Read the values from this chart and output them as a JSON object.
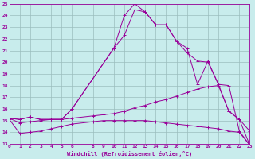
{
  "xlabel": "Windchill (Refroidissement éolien,°C)",
  "background_color": "#c8ecec",
  "grid_color": "#9bbebe",
  "line_color": "#990099",
  "xlim": [
    0,
    23
  ],
  "ylim": [
    13,
    25
  ],
  "xticks": [
    0,
    1,
    2,
    3,
    4,
    5,
    6,
    8,
    9,
    10,
    11,
    12,
    13,
    14,
    15,
    16,
    17,
    18,
    19,
    20,
    21,
    22,
    23
  ],
  "yticks": [
    13,
    14,
    15,
    16,
    17,
    18,
    19,
    20,
    21,
    22,
    23,
    24,
    25
  ],
  "series": [
    {
      "x": [
        0,
        1,
        2,
        3,
        4,
        5,
        6,
        10,
        11,
        12,
        13,
        14,
        15,
        16,
        17,
        18,
        19,
        20,
        21,
        22,
        23
      ],
      "y": [
        15.2,
        15.1,
        15.3,
        15.1,
        15.1,
        15.1,
        16.0,
        21.2,
        24.0,
        25.0,
        24.3,
        23.2,
        23.2,
        21.8,
        20.8,
        20.1,
        20.0,
        18.1,
        18.0,
        14.1,
        12.9
      ]
    },
    {
      "x": [
        0,
        1,
        2,
        3,
        4,
        5,
        6,
        10,
        11,
        12,
        13,
        14,
        15,
        16,
        17,
        18,
        19,
        20,
        21,
        22,
        23
      ],
      "y": [
        15.2,
        15.1,
        15.3,
        15.1,
        15.1,
        15.1,
        16.0,
        21.2,
        22.3,
        24.5,
        24.3,
        23.2,
        23.2,
        21.8,
        21.2,
        18.1,
        20.1,
        18.1,
        15.8,
        15.1,
        12.9
      ]
    },
    {
      "x": [
        0,
        1,
        2,
        3,
        4,
        5,
        6,
        8,
        9,
        10,
        11,
        12,
        13,
        14,
        15,
        16,
        17,
        18,
        19,
        20,
        21,
        22,
        23
      ],
      "y": [
        15.2,
        14.8,
        14.9,
        15.0,
        15.1,
        15.1,
        15.2,
        15.4,
        15.5,
        15.6,
        15.8,
        16.1,
        16.3,
        16.6,
        16.8,
        17.1,
        17.4,
        17.7,
        17.9,
        18.0,
        15.8,
        15.1,
        14.1
      ]
    },
    {
      "x": [
        0,
        1,
        2,
        3,
        4,
        5,
        6,
        8,
        9,
        10,
        11,
        12,
        13,
        14,
        15,
        16,
        17,
        18,
        19,
        20,
        21,
        22,
        23
      ],
      "y": [
        15.1,
        13.9,
        14.0,
        14.1,
        14.3,
        14.5,
        14.7,
        14.9,
        15.0,
        15.0,
        15.0,
        15.0,
        15.0,
        14.9,
        14.8,
        14.7,
        14.6,
        14.5,
        14.4,
        14.3,
        14.1,
        14.0,
        12.9
      ]
    }
  ]
}
